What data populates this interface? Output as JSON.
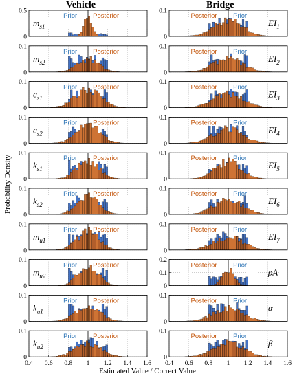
{
  "figure": {
    "left_title": "Vehicle",
    "right_title": "Bridge",
    "ylabel": "Probability Density",
    "xlabel": "Estimated Value / Correct Value"
  },
  "colors": {
    "prior": "#4472c4",
    "posterior": "#c55a11",
    "prior_text": "#2e75b6",
    "posterior_text": "#c55a11",
    "mean_line": "#000000",
    "grid": "#b0b0b0"
  },
  "chart_data": [
    {
      "type": "bar",
      "panel": "vehicle",
      "xlim": [
        0.4,
        1.6
      ],
      "xticks": [
        0.4,
        0.6,
        0.8,
        1,
        1.2,
        1.4,
        1.6
      ],
      "bin_width": 0.02,
      "legend": [
        "Prior",
        "Posterior"
      ],
      "grid": true,
      "subplots": [
        {
          "param": "m",
          "sub": "s1",
          "ylim": [
            0,
            0.5
          ],
          "yticks": [
            0,
            0.5
          ],
          "prior": {
            "center": 1.0,
            "half": 0.2
          },
          "posterior": {
            "mean": 1.0,
            "std": 0.04,
            "peak": 0.45
          }
        },
        {
          "param": "m",
          "sub": "s2",
          "ylim": [
            0,
            0.1
          ],
          "yticks": [
            0,
            0.1
          ],
          "prior": {
            "center": 1.0,
            "half": 0.2
          },
          "posterior": {
            "mean": 1.0,
            "std": 0.11,
            "peak": 0.05
          }
        },
        {
          "param": "c",
          "sub": "s1",
          "ylim": [
            0,
            0.1
          ],
          "yticks": [
            0,
            0.1
          ],
          "prior": {
            "center": 1.0,
            "half": 0.2
          },
          "posterior": {
            "mean": 1.0,
            "std": 0.13,
            "peak": 0.07
          }
        },
        {
          "param": "c",
          "sub": "s2",
          "ylim": [
            0,
            0.1
          ],
          "yticks": [
            0,
            0.1
          ],
          "prior": {
            "center": 1.0,
            "half": 0.2
          },
          "posterior": {
            "mean": 1.0,
            "std": 0.12,
            "peak": 0.07
          }
        },
        {
          "param": "k",
          "sub": "s1",
          "ylim": [
            0,
            0.1
          ],
          "yticks": [
            0,
            0.1
          ],
          "prior": {
            "center": 1.0,
            "half": 0.2
          },
          "posterior": {
            "mean": 1.0,
            "std": 0.11,
            "peak": 0.07
          }
        },
        {
          "param": "k",
          "sub": "s2",
          "ylim": [
            0,
            0.1
          ],
          "yticks": [
            0,
            0.1
          ],
          "prior": {
            "center": 1.0,
            "half": 0.2
          },
          "posterior": {
            "mean": 1.0,
            "std": 0.11,
            "peak": 0.07
          }
        },
        {
          "param": "m",
          "sub": "u1",
          "ylim": [
            0,
            0.1
          ],
          "yticks": [
            0,
            0.1
          ],
          "prior": {
            "center": 1.0,
            "half": 0.2
          },
          "posterior": {
            "mean": 1.0,
            "std": 0.11,
            "peak": 0.07
          }
        },
        {
          "param": "m",
          "sub": "u2",
          "ylim": [
            0,
            0.1
          ],
          "yticks": [
            0,
            0.1
          ],
          "prior": {
            "center": 1.0,
            "half": 0.2
          },
          "posterior": {
            "mean": 1.0,
            "std": 0.1,
            "peak": 0.08
          }
        },
        {
          "param": "k",
          "sub": "u1",
          "ylim": [
            0,
            0.1
          ],
          "yticks": [
            0,
            0.1
          ],
          "prior": {
            "center": 1.0,
            "half": 0.2
          },
          "posterior": {
            "mean": 1.0,
            "std": 0.12,
            "peak": 0.06
          }
        },
        {
          "param": "k",
          "sub": "u2",
          "ylim": [
            0,
            0.1
          ],
          "yticks": [
            0,
            0.1
          ],
          "prior": {
            "center": 1.0,
            "half": 0.2
          },
          "posterior": {
            "mean": 1.0,
            "std": 0.13,
            "peak": 0.05
          }
        }
      ]
    },
    {
      "type": "bar",
      "panel": "bridge",
      "xlim": [
        0.4,
        1.6
      ],
      "xticks": [
        0.4,
        0.6,
        0.8,
        1,
        1.2,
        1.4,
        1.6
      ],
      "bin_width": 0.02,
      "legend": [
        "Prior",
        "Posterior"
      ],
      "grid": true,
      "subplots": [
        {
          "param": "EI",
          "sub": "1",
          "ylim": [
            0,
            0.1
          ],
          "yticks": [
            0,
            0.1
          ],
          "prior": {
            "center": 1.0,
            "half": 0.2
          },
          "posterior": {
            "mean": 1.0,
            "std": 0.15,
            "peak": 0.06
          }
        },
        {
          "param": "EI",
          "sub": "2",
          "ylim": [
            0,
            0.1
          ],
          "yticks": [
            0,
            0.1
          ],
          "prior": {
            "center": 1.0,
            "half": 0.2
          },
          "posterior": {
            "mean": 1.0,
            "std": 0.15,
            "peak": 0.05
          }
        },
        {
          "param": "EI",
          "sub": "3",
          "ylim": [
            0,
            0.1
          ],
          "yticks": [
            0,
            0.1
          ],
          "prior": {
            "center": 1.0,
            "half": 0.2
          },
          "posterior": {
            "mean": 1.0,
            "std": 0.15,
            "peak": 0.055
          }
        },
        {
          "param": "EI",
          "sub": "4",
          "ylim": [
            0,
            0.1
          ],
          "yticks": [
            0,
            0.1
          ],
          "prior": {
            "center": 1.0,
            "half": 0.2
          },
          "posterior": {
            "mean": 1.0,
            "std": 0.15,
            "peak": 0.055
          }
        },
        {
          "param": "EI",
          "sub": "5",
          "ylim": [
            0,
            0.1
          ],
          "yticks": [
            0,
            0.1
          ],
          "prior": {
            "center": 1.0,
            "half": 0.2
          },
          "posterior": {
            "mean": 1.0,
            "std": 0.13,
            "peak": 0.065
          }
        },
        {
          "param": "EI",
          "sub": "6",
          "ylim": [
            0,
            0.1
          ],
          "yticks": [
            0,
            0.1
          ],
          "prior": {
            "center": 1.0,
            "half": 0.2
          },
          "posterior": {
            "mean": 1.0,
            "std": 0.15,
            "peak": 0.055
          }
        },
        {
          "param": "EI",
          "sub": "7",
          "ylim": [
            0,
            0.1
          ],
          "yticks": [
            0,
            0.1
          ],
          "prior": {
            "center": 1.0,
            "half": 0.2
          },
          "posterior": {
            "mean": 1.0,
            "std": 0.15,
            "peak": 0.05
          }
        },
        {
          "param": "ρA",
          "sub": "",
          "ylim": [
            0,
            0.2
          ],
          "yticks": [
            0,
            0.1,
            0.2
          ],
          "prior": {
            "center": 1.0,
            "half": 0.2
          },
          "posterior": {
            "mean": 1.0,
            "std": 0.06,
            "peak": 0.13
          }
        },
        {
          "param": "α",
          "sub": "",
          "ylim": [
            0,
            0.1
          ],
          "yticks": [
            0,
            0.1
          ],
          "prior": {
            "center": 1.0,
            "half": 0.2
          },
          "posterior": {
            "mean": 1.0,
            "std": 0.15,
            "peak": 0.05
          }
        },
        {
          "param": "β",
          "sub": "",
          "ylim": [
            0,
            0.1
          ],
          "yticks": [
            0,
            0.1
          ],
          "prior": {
            "center": 1.0,
            "half": 0.2
          },
          "posterior": {
            "mean": 1.0,
            "std": 0.15,
            "peak": 0.055
          }
        }
      ]
    }
  ]
}
